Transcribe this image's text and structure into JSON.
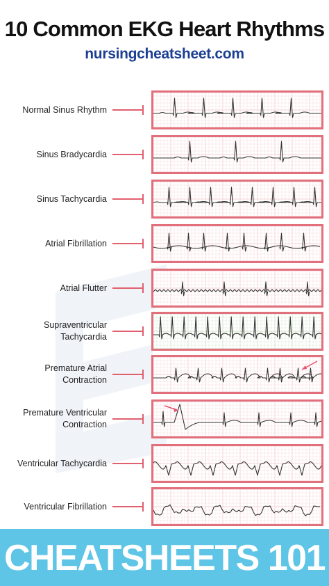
{
  "header": {
    "title": "10 Common EKG Heart Rhythms",
    "subtitle": "nursingcheatsheet.com"
  },
  "rhythms": [
    {
      "lines": [
        "Normal Sinus Rhythm"
      ],
      "grid": "#f6d2d6",
      "pattern": "normal-sinus"
    },
    {
      "lines": [
        "Sinus Bradycardia"
      ],
      "grid": "#f6d2d6",
      "pattern": "bradycardia"
    },
    {
      "lines": [
        "Sinus Tachycardia"
      ],
      "grid": "#f6d2d6",
      "pattern": "tachycardia"
    },
    {
      "lines": [
        "Atrial Fibrillation"
      ],
      "grid": "#f6d2d6",
      "pattern": "afib"
    },
    {
      "lines": [
        "Atrial Flutter"
      ],
      "grid": "#f6d2d6",
      "pattern": "flutter"
    },
    {
      "lines": [
        "Supraventricular",
        "Tachycardia"
      ],
      "grid": "#cfe5c8",
      "pattern": "svt"
    },
    {
      "lines": [
        "Premature Atrial",
        "Contraction"
      ],
      "grid": "#f6d2d6",
      "pattern": "pac"
    },
    {
      "lines": [
        "Premature Ventricular",
        "Contraction"
      ],
      "grid": "#f6d2d6",
      "pattern": "pvc"
    },
    {
      "lines": [
        "Ventricular Tachycardia"
      ],
      "grid": "#f6d2d6",
      "pattern": "vtach"
    },
    {
      "lines": [
        "Ventricular Fibrillation"
      ],
      "grid": "#f6d2d6",
      "pattern": "vfib"
    }
  ],
  "colors": {
    "border": "#e2707c",
    "connector": "#e0606e",
    "trace": "#333333",
    "arrow": "#e8506a",
    "subtitle": "#1c3f94",
    "banner": "#5fc5e6"
  },
  "footer": {
    "banner": "CHEATSHEETS 101"
  }
}
